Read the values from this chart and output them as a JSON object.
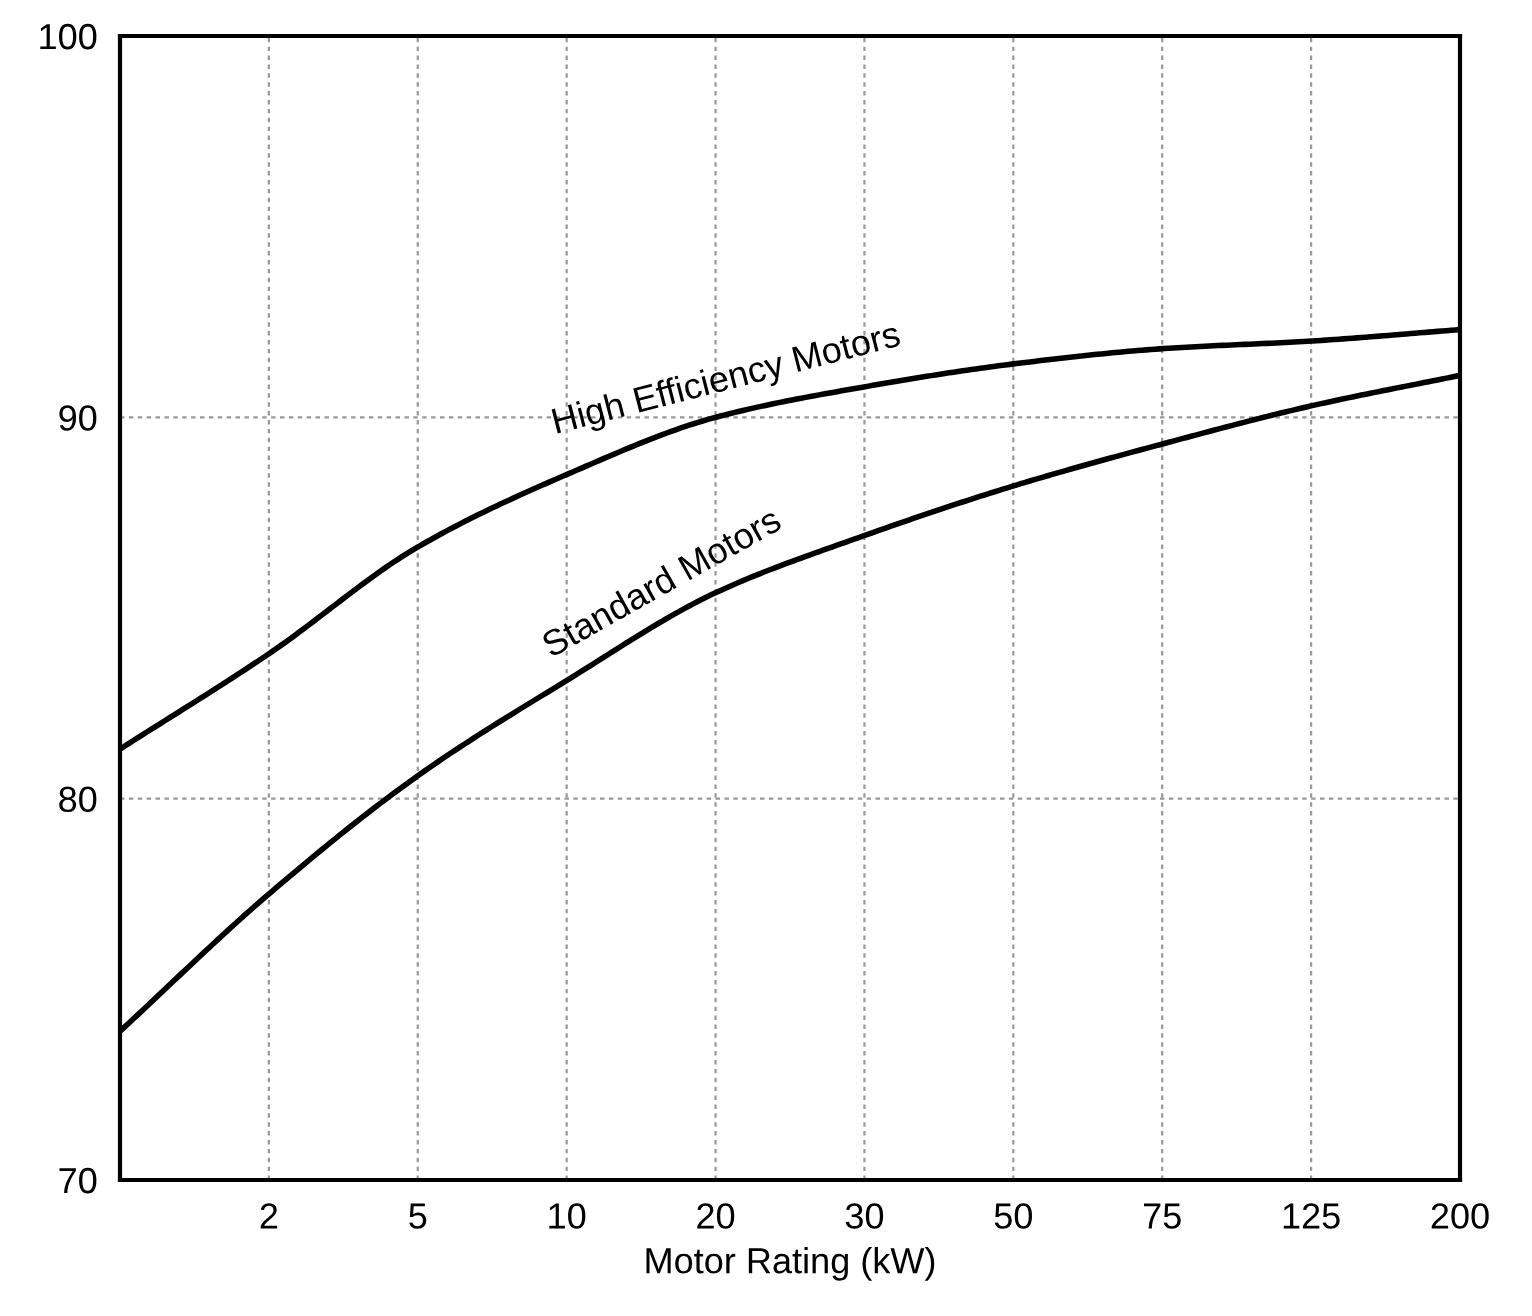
{
  "chart_data": {
    "type": "line",
    "xlabel": "Motor Rating (kW)",
    "categories": [
      null,
      "2",
      "5",
      "10",
      "20",
      "30",
      "50",
      "75",
      "125",
      "200"
    ],
    "series": [
      {
        "name": "High Efficiency Motors",
        "color": "#000000",
        "values": [
          81.3,
          83.8,
          86.6,
          88.5,
          90.0,
          90.8,
          91.4,
          91.8,
          92.0,
          92.3
        ]
      },
      {
        "name": "Standard Motors",
        "color": "#000000",
        "values": [
          73.9,
          77.5,
          80.6,
          83.1,
          85.4,
          86.9,
          88.2,
          89.3,
          90.3,
          91.1
        ]
      }
    ],
    "ylim": [
      70,
      100
    ],
    "yticks": [
      70,
      80,
      90,
      100
    ],
    "grid": true,
    "line_style": "solid",
    "marker": "none"
  }
}
